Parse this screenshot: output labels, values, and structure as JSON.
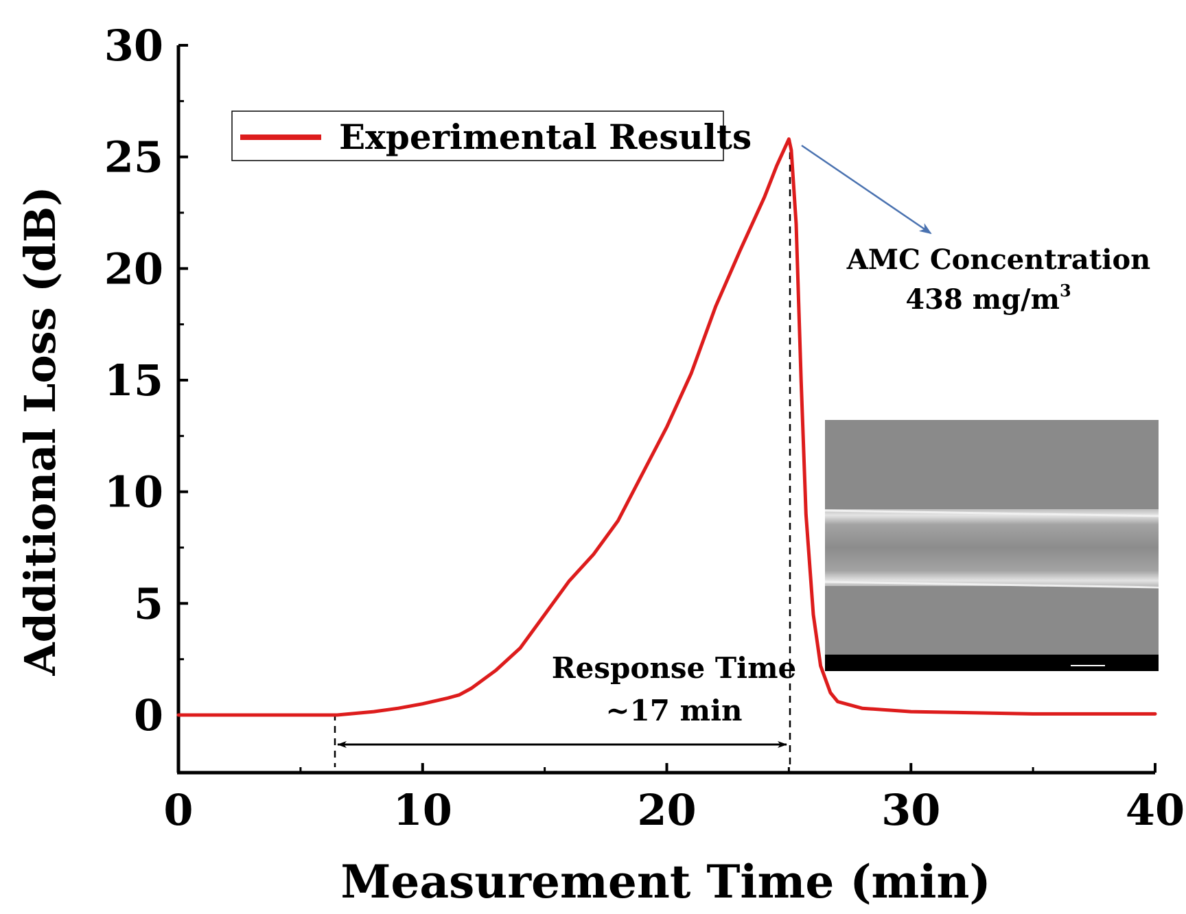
{
  "chart_data": {
    "type": "line",
    "xlabel": "Measurement Time (min)",
    "ylabel": "Additional Loss (dB)",
    "xlim": [
      0,
      40
    ],
    "ylim": [
      -2.5,
      30
    ],
    "xticks": [
      0,
      10,
      20,
      30,
      40
    ],
    "yticks": [
      0,
      5,
      10,
      15,
      20,
      25,
      30
    ],
    "legend": {
      "entries": [
        "Experimental Results"
      ],
      "placement": "top-left"
    },
    "series": [
      {
        "name": "Experimental Results",
        "color": "#dd1c1c",
        "x": [
          0,
          2,
          4,
          6,
          6.5,
          7,
          8,
          9,
          10,
          11,
          11.5,
          12,
          13,
          14,
          15,
          16,
          17,
          18,
          19,
          20,
          21,
          22,
          23,
          24,
          24.5,
          25,
          25.1,
          25.3,
          25.5,
          25.7,
          26,
          26.3,
          26.7,
          27,
          28,
          30,
          35,
          40
        ],
        "y": [
          0,
          0,
          0,
          0,
          0,
          0.05,
          0.15,
          0.3,
          0.5,
          0.75,
          0.9,
          1.2,
          2.0,
          3.0,
          4.5,
          6.0,
          7.2,
          8.7,
          10.8,
          12.9,
          15.3,
          18.3,
          20.8,
          23.2,
          24.6,
          25.8,
          25.3,
          22.0,
          15.0,
          9.0,
          4.5,
          2.2,
          1.0,
          0.6,
          0.3,
          0.15,
          0.05,
          0.05
        ]
      }
    ],
    "annotations": [
      {
        "text_line1": "AMC Concentration",
        "text_line2": "438 mg/m",
        "text_superscript": "3",
        "arrow_color": "#4a72b0"
      },
      {
        "text_line1": "Response Time",
        "text_line2": "~17 min",
        "span_x": [
          6.5,
          25
        ]
      }
    ],
    "inset": {
      "type": "sem-micrograph",
      "description_icon": "sem-fiber-image"
    }
  }
}
